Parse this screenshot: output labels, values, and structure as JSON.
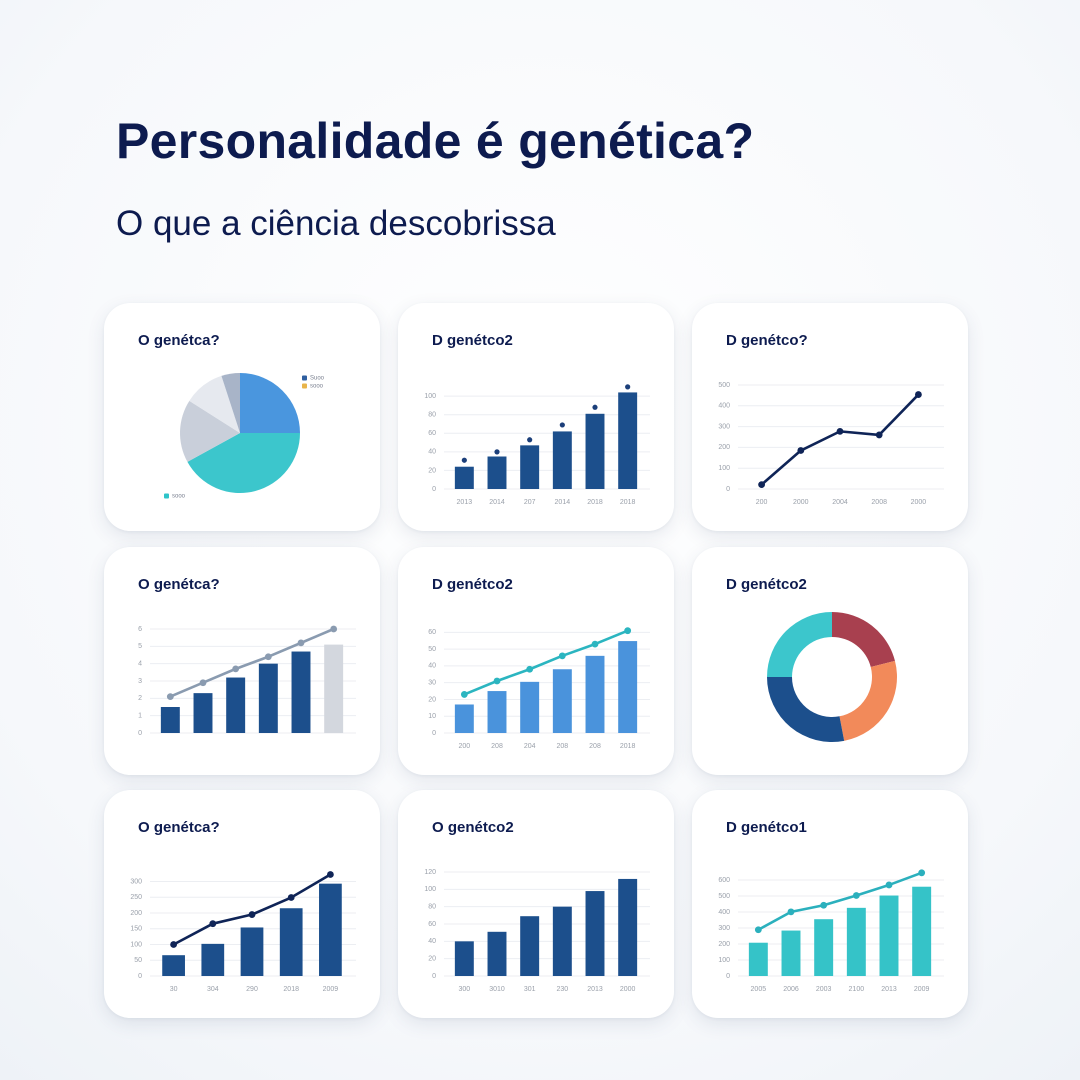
{
  "title": "Personalidade é genética?",
  "subtitle": "O que a ciência descobrissa",
  "chart_data": [
    {
      "type": "pie",
      "title": "O genétca?",
      "values": [
        25,
        42,
        17,
        11,
        5
      ],
      "colors": [
        "#4a96de",
        "#3cc6cc",
        "#c9cfda",
        "#e6e9ef",
        "#a8b4c8"
      ],
      "legend": [
        {
          "name": "Suoo",
          "color": "#2f5fa0"
        },
        {
          "name": "sooo",
          "color": "#e8b44a"
        },
        {
          "name": "sooo",
          "color": "#2ec4c9"
        }
      ]
    },
    {
      "type": "combo",
      "title": "D genétco2",
      "grid": true,
      "categories": [
        "2013",
        "2014",
        "207",
        "2014",
        "2018",
        "2018"
      ],
      "ylim": [
        0,
        112
      ],
      "yticks": [
        0,
        20,
        40,
        60,
        80,
        100
      ],
      "series": [
        {
          "type": "bar",
          "color": "#1c4f8c",
          "values": [
            24,
            35,
            47,
            62,
            81,
            104
          ]
        },
        {
          "type": "dot",
          "color": "#1c3f7a",
          "values": [
            31,
            40,
            53,
            69,
            88,
            110
          ]
        }
      ]
    },
    {
      "type": "combo",
      "title": "D genétco?",
      "grid": true,
      "categories": [
        "200",
        "2000",
        "2004",
        "2008",
        "2000"
      ],
      "ylim": [
        0,
        500
      ],
      "yticks": [
        0,
        100,
        200,
        300,
        400,
        500
      ],
      "series": [
        {
          "type": "line",
          "color": "#0f2457",
          "values": [
            21,
            185,
            277,
            260,
            454
          ]
        }
      ]
    },
    {
      "type": "combo",
      "title": "O genétca?",
      "grid": true,
      "ylim": [
        0,
        6
      ],
      "yticks": [
        0,
        1,
        2,
        3,
        4,
        5,
        6
      ],
      "series": [
        {
          "type": "bar",
          "colors": [
            "#1c4f8c",
            "#1c4f8c",
            "#1c4f8c",
            "#1c4f8c",
            "#1c4f8c",
            "#d3d7de"
          ],
          "values": [
            1.5,
            2.3,
            3.2,
            4.0,
            4.7,
            5.1
          ]
        },
        {
          "type": "line",
          "color": "#8a9bb0",
          "values": [
            2.1,
            2.9,
            3.7,
            4.4,
            5.2,
            6.0
          ]
        }
      ]
    },
    {
      "type": "combo",
      "title": "D genétco2",
      "grid": true,
      "categories": [
        "200",
        "208",
        "204",
        "208",
        "208",
        "2018"
      ],
      "ylim": [
        0,
        62
      ],
      "yticks": [
        0,
        10,
        20,
        30,
        40,
        50,
        60
      ],
      "series": [
        {
          "type": "bar",
          "color": "#4a93dc",
          "values": [
            17,
            25,
            30.5,
            38,
            46,
            54.8
          ]
        },
        {
          "type": "line",
          "color": "#2bb5c0",
          "values": [
            23,
            31,
            38,
            46,
            53,
            61
          ]
        }
      ]
    },
    {
      "type": "donut",
      "title": "D genétco2",
      "values": [
        21,
        26,
        28,
        25
      ],
      "colors": [
        "#a8404f",
        "#f28a5a",
        "#1c4f8c",
        "#3cc6cc"
      ]
    },
    {
      "type": "combo",
      "title": "O genétca?",
      "grid": true,
      "categories": [
        "30",
        "304",
        "290",
        "2018",
        "2009"
      ],
      "ylim": [
        0,
        330
      ],
      "yticks": [
        0,
        50,
        100,
        150,
        200,
        250,
        300
      ],
      "series": [
        {
          "type": "bar",
          "color": "#1c4f8c",
          "values": [
            66,
            102,
            154,
            215,
            293
          ]
        },
        {
          "type": "line",
          "color": "#0f2457",
          "values": [
            100,
            166,
            195,
            249,
            322
          ]
        }
      ]
    },
    {
      "type": "combo",
      "title": "O genétco2",
      "grid": true,
      "categories": [
        "300",
        "3010",
        "301",
        "230",
        "2013",
        "2000"
      ],
      "ylim": [
        0,
        120
      ],
      "yticks": [
        0,
        20,
        40,
        60,
        80,
        100,
        120
      ],
      "series": [
        {
          "type": "bar",
          "color": "#1c4f8c",
          "values": [
            40,
            51,
            69,
            80,
            98,
            112
          ]
        }
      ]
    },
    {
      "type": "combo",
      "title": "D genétco1",
      "grid": true,
      "categories": [
        "2005",
        "2006",
        "2003",
        "2100",
        "2013",
        "2009"
      ],
      "ylim": [
        0,
        650
      ],
      "yticks": [
        0,
        100,
        200,
        300,
        400,
        500,
        600
      ],
      "series": [
        {
          "type": "bar",
          "color": "#35c3c8",
          "values": [
            208,
            284,
            355,
            426,
            503,
            558
          ]
        },
        {
          "type": "line",
          "color": "#2bb0bd",
          "values": [
            289,
            401,
            442,
            503,
            569,
            645
          ]
        }
      ]
    }
  ]
}
